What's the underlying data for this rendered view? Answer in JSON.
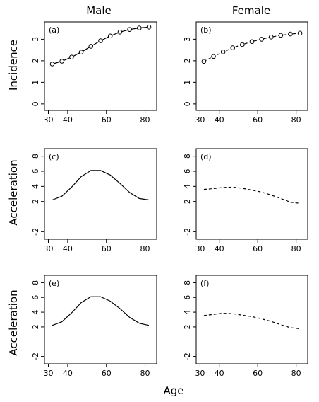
{
  "figure": {
    "column_titles": [
      "Male",
      "Female"
    ],
    "row_ylabels": [
      "Incidence",
      "Acceleration",
      "Acceleration"
    ],
    "xlabel": "Age"
  },
  "chart_data": [
    {
      "type": "line",
      "tag": "(a)",
      "column": "Male",
      "row": 0,
      "line_style": "solid",
      "markers": "open-circle",
      "x": [
        32,
        37,
        42,
        47,
        52,
        57,
        62,
        67,
        72,
        77,
        82
      ],
      "y": [
        1.85,
        1.98,
        2.17,
        2.4,
        2.67,
        2.93,
        3.15,
        3.33,
        3.45,
        3.52,
        3.56
      ],
      "xlim": [
        28,
        86
      ],
      "ylim": [
        -0.3,
        3.8
      ],
      "xticks": [
        30,
        40,
        60,
        80
      ],
      "yticks": [
        0,
        1,
        2,
        3
      ]
    },
    {
      "type": "line",
      "tag": "(b)",
      "column": "Female",
      "row": 0,
      "line_style": "dashed",
      "markers": "open-circle",
      "x": [
        32,
        37,
        42,
        47,
        52,
        57,
        62,
        67,
        72,
        77,
        82
      ],
      "y": [
        1.97,
        2.2,
        2.41,
        2.6,
        2.75,
        2.89,
        3.0,
        3.1,
        3.18,
        3.24,
        3.28
      ],
      "xlim": [
        28,
        86
      ],
      "ylim": [
        -0.3,
        3.8
      ],
      "xticks": [
        30,
        40,
        60,
        80
      ],
      "yticks": [
        0,
        1,
        2,
        3
      ]
    },
    {
      "type": "line",
      "tag": "(c)",
      "column": "Male",
      "row": 1,
      "line_style": "solid",
      "markers": "none",
      "x": [
        32,
        37,
        42,
        47,
        52,
        57,
        62,
        67,
        72,
        77,
        82
      ],
      "y": [
        2.2,
        2.7,
        3.9,
        5.3,
        6.1,
        6.1,
        5.5,
        4.4,
        3.2,
        2.4,
        2.2
      ],
      "xlim": [
        28,
        86
      ],
      "ylim": [
        -3,
        9
      ],
      "xticks": [
        30,
        40,
        60,
        80
      ],
      "yticks": [
        -2,
        2,
        4,
        6,
        8
      ]
    },
    {
      "type": "line",
      "tag": "(d)",
      "column": "Female",
      "row": 1,
      "line_style": "dashed",
      "markers": "none",
      "x": [
        32,
        37,
        42,
        47,
        52,
        57,
        62,
        67,
        72,
        77,
        82
      ],
      "y": [
        3.6,
        3.7,
        3.85,
        3.9,
        3.75,
        3.5,
        3.25,
        2.85,
        2.4,
        1.9,
        1.75
      ],
      "xlim": [
        28,
        86
      ],
      "ylim": [
        -3,
        9
      ],
      "xticks": [
        30,
        40,
        60,
        80
      ],
      "yticks": [
        -2,
        2,
        4,
        6,
        8
      ]
    },
    {
      "type": "line",
      "tag": "(e)",
      "column": "Male",
      "row": 2,
      "line_style": "solid",
      "markers": "none",
      "x": [
        32,
        37,
        42,
        47,
        52,
        57,
        62,
        67,
        72,
        77,
        82
      ],
      "y": [
        2.2,
        2.7,
        3.9,
        5.3,
        6.1,
        6.1,
        5.5,
        4.5,
        3.3,
        2.5,
        2.2
      ],
      "xlim": [
        28,
        86
      ],
      "ylim": [
        -3,
        9
      ],
      "xticks": [
        30,
        40,
        60,
        80
      ],
      "yticks": [
        -2,
        2,
        4,
        6,
        8
      ]
    },
    {
      "type": "line",
      "tag": "(f)",
      "column": "Female",
      "row": 2,
      "line_style": "dashed",
      "markers": "none",
      "x": [
        32,
        37,
        42,
        47,
        52,
        57,
        62,
        67,
        72,
        77,
        82
      ],
      "y": [
        3.55,
        3.7,
        3.85,
        3.8,
        3.6,
        3.4,
        3.1,
        2.75,
        2.3,
        1.9,
        1.75
      ],
      "xlim": [
        28,
        86
      ],
      "ylim": [
        -3,
        9
      ],
      "xticks": [
        30,
        40,
        60,
        80
      ],
      "yticks": [
        -2,
        2,
        4,
        6,
        8
      ]
    }
  ]
}
